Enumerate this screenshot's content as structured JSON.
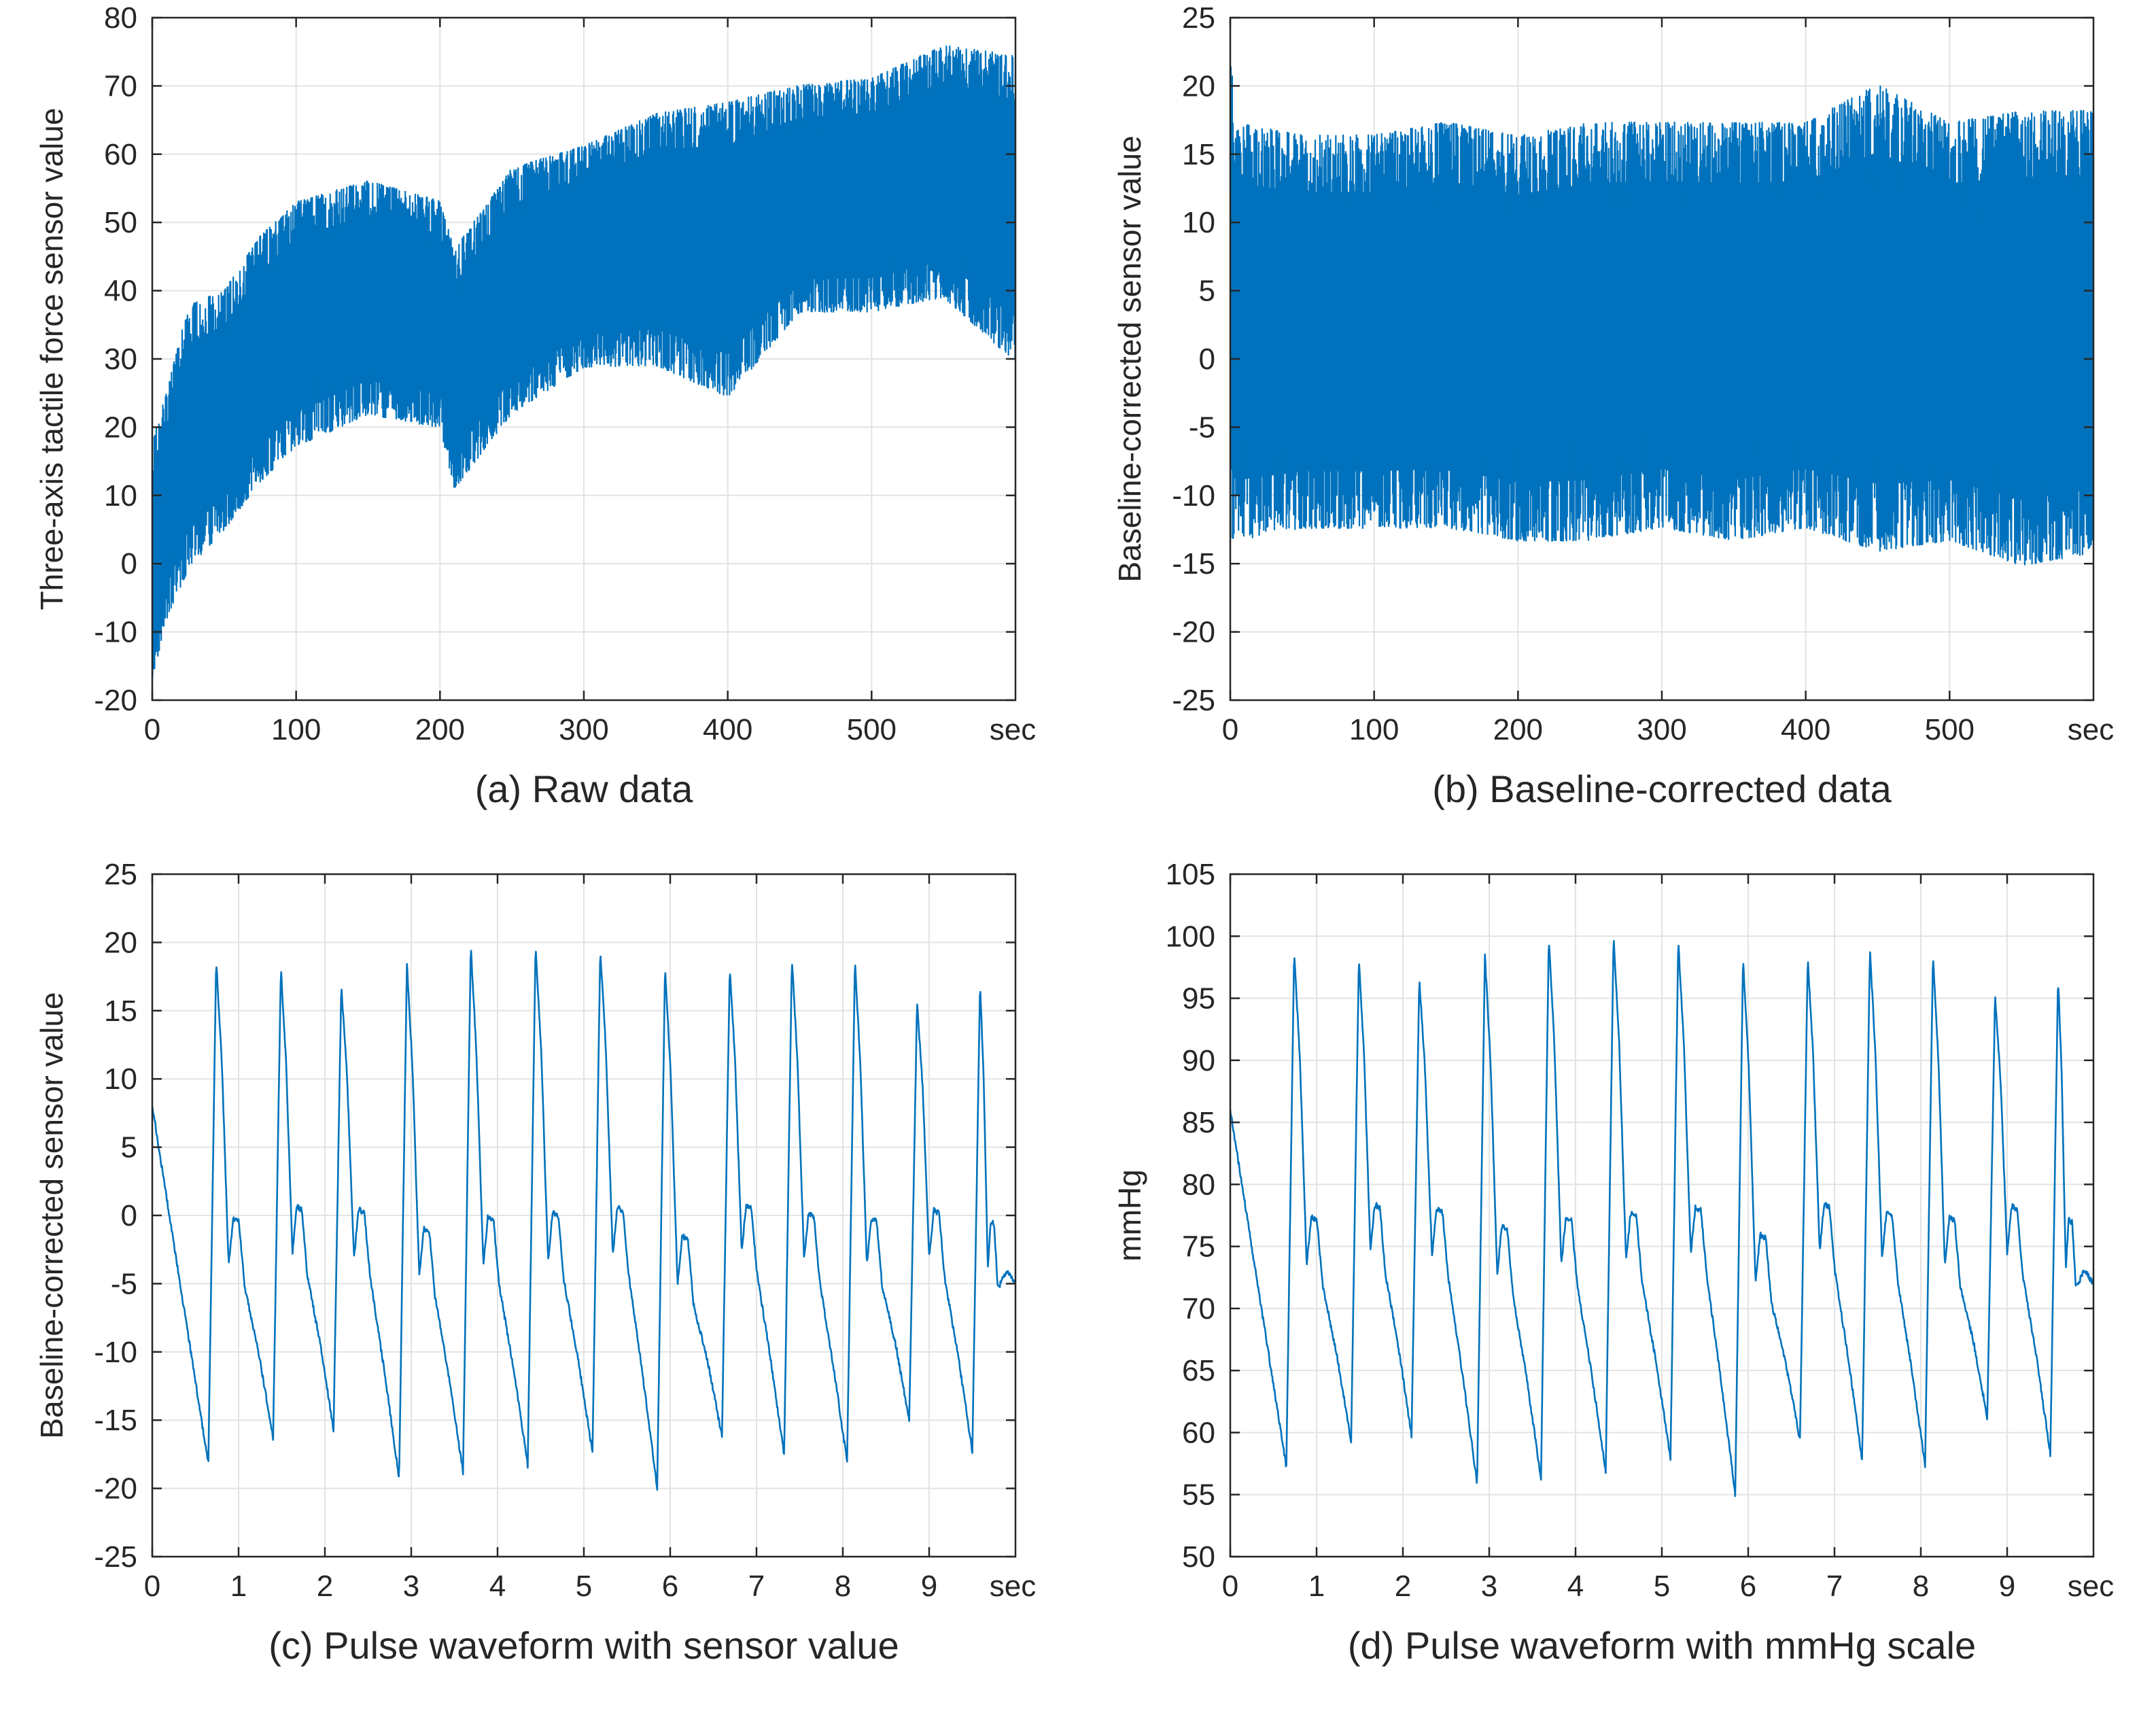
{
  "figure": {
    "accent": "#0072bd"
  },
  "chart_data": [
    {
      "id": "a",
      "type": "line",
      "caption": "(a) Raw data",
      "ylabel": "Three-axis tactile force sensor value",
      "xlabel": "",
      "x_unit_label": "sec",
      "xlim": [
        0,
        600
      ],
      "ylim": [
        -20,
        80
      ],
      "xticks": [
        0,
        100,
        200,
        300,
        400,
        500
      ],
      "xtick_labels": [
        "0",
        "100",
        "200",
        "300",
        "400",
        "500"
      ],
      "yticks": [
        -20,
        -10,
        0,
        10,
        20,
        30,
        40,
        50,
        60,
        70,
        80
      ],
      "ytick_labels": [
        "-20",
        "-10",
        "0",
        "10",
        "20",
        "30",
        "40",
        "50",
        "60",
        "70",
        "80"
      ],
      "grid": true,
      "color": "#0072bd",
      "series": [
        {
          "name": "raw",
          "style": "dense-band",
          "x": [
            0,
            10,
            25,
            50,
            75,
            100,
            150,
            200,
            210,
            250,
            300,
            350,
            400,
            450,
            500,
            550,
            600
          ],
          "y_upper": [
            20,
            27,
            40,
            42,
            50,
            55,
            58,
            55,
            48,
            60,
            63,
            68,
            70,
            72,
            73,
            78,
            77
          ],
          "y_lower": [
            -19,
            -10,
            -3,
            3,
            10,
            15,
            20,
            18,
            9,
            20,
            27,
            27,
            22,
            35,
            35,
            37,
            27
          ]
        }
      ]
    },
    {
      "id": "b",
      "type": "line",
      "caption": "(b) Baseline-corrected data",
      "ylabel": "Baseline-corrected sensor value",
      "xlabel": "",
      "x_unit_label": "sec",
      "xlim": [
        0,
        600
      ],
      "ylim": [
        -25,
        25
      ],
      "xticks": [
        0,
        100,
        200,
        300,
        400,
        500
      ],
      "xtick_labels": [
        "0",
        "100",
        "200",
        "300",
        "400",
        "500"
      ],
      "yticks": [
        -25,
        -20,
        -15,
        -10,
        -5,
        0,
        5,
        10,
        15,
        20,
        25
      ],
      "ytick_labels": [
        "-25",
        "-20",
        "-15",
        "-10",
        "-5",
        "0",
        "5",
        "10",
        "15",
        "20",
        "25"
      ],
      "grid": true,
      "color": "#0072bd",
      "series": [
        {
          "name": "baseline-corrected",
          "style": "dense-band",
          "x": [
            0,
            5,
            50,
            100,
            150,
            200,
            250,
            300,
            350,
            400,
            450,
            500,
            550,
            600
          ],
          "y_upper": [
            24,
            19,
            18,
            18,
            19,
            18,
            19,
            19,
            19,
            19,
            22,
            19,
            20,
            20
          ],
          "y_lower": [
            -15,
            -15,
            -14,
            -14,
            -14,
            -15,
            -15,
            -14,
            -15,
            -14,
            -16,
            -15,
            -17,
            -16
          ]
        }
      ]
    },
    {
      "id": "c",
      "type": "line",
      "caption": "(c) Pulse waveform with sensor value",
      "ylabel": "Baseline-corrected sensor value",
      "xlabel": "",
      "x_unit_label": "sec",
      "xlim": [
        0,
        10
      ],
      "ylim": [
        -25,
        25
      ],
      "xticks": [
        0,
        1,
        2,
        3,
        4,
        5,
        6,
        7,
        8,
        9
      ],
      "xtick_labels": [
        "0",
        "1",
        "2",
        "3",
        "4",
        "5",
        "6",
        "7",
        "8",
        "9"
      ],
      "yticks": [
        -25,
        -20,
        -15,
        -10,
        -5,
        0,
        5,
        10,
        15,
        20,
        25
      ],
      "ytick_labels": [
        "-25",
        "-20",
        "-15",
        "-10",
        "-5",
        "0",
        "5",
        "10",
        "15",
        "20",
        "25"
      ],
      "grid": true,
      "color": "#0072bd",
      "series": [
        {
          "name": "pulse",
          "style": "pulse",
          "start": {
            "t": 0,
            "v": 8
          },
          "beats": [
            {
              "min_t": 0.65,
              "min": -18.2,
              "peak_t": 0.74,
              "peak": 18.7
            },
            {
              "min_t": 1.4,
              "min": -16.3,
              "peak_t": 1.49,
              "peak": 18.1
            },
            {
              "min_t": 2.1,
              "min": -15.7,
              "peak_t": 2.19,
              "peak": 16.8
            },
            {
              "min_t": 2.86,
              "min": -19.3,
              "peak_t": 2.95,
              "peak": 18.5
            },
            {
              "min_t": 3.6,
              "min": -18.8,
              "peak_t": 3.69,
              "peak": 19.7
            },
            {
              "min_t": 4.35,
              "min": -18.3,
              "peak_t": 4.44,
              "peak": 19.8
            },
            {
              "min_t": 5.1,
              "min": -17.4,
              "peak_t": 5.19,
              "peak": 19.5
            },
            {
              "min_t": 5.85,
              "min": -20.0,
              "peak_t": 5.94,
              "peak": 18.1
            },
            {
              "min_t": 6.6,
              "min": -16.2,
              "peak_t": 6.69,
              "peak": 18.2
            },
            {
              "min_t": 7.32,
              "min": -17.6,
              "peak_t": 7.41,
              "peak": 18.8
            },
            {
              "min_t": 8.05,
              "min": -18.1,
              "peak_t": 8.14,
              "peak": 18.6
            },
            {
              "min_t": 8.77,
              "min": -15.0,
              "peak_t": 8.86,
              "peak": 15.7
            },
            {
              "min_t": 9.5,
              "min": -17.3,
              "peak_t": 9.59,
              "peak": 17.0
            }
          ],
          "end": {
            "t": 10,
            "v": -5
          }
        }
      ]
    },
    {
      "id": "d",
      "type": "line",
      "caption": "(d) Pulse waveform with mmHg scale",
      "ylabel": "mmHg",
      "xlabel": "",
      "x_unit_label": "sec",
      "xlim": [
        0,
        10
      ],
      "ylim": [
        50,
        105
      ],
      "xticks": [
        0,
        1,
        2,
        3,
        4,
        5,
        6,
        7,
        8,
        9
      ],
      "xtick_labels": [
        "0",
        "1",
        "2",
        "3",
        "4",
        "5",
        "6",
        "7",
        "8",
        "9"
      ],
      "yticks": [
        50,
        55,
        60,
        65,
        70,
        75,
        80,
        85,
        90,
        95,
        100,
        105
      ],
      "ytick_labels": [
        "50",
        "55",
        "60",
        "65",
        "70",
        "75",
        "80",
        "85",
        "90",
        "95",
        "100",
        "105"
      ],
      "grid": true,
      "color": "#0072bd",
      "series": [
        {
          "name": "pulse-mmHg",
          "style": "pulse",
          "start": {
            "t": 0,
            "v": 86
          },
          "beats": [
            {
              "min_t": 0.65,
              "min": 57.2,
              "peak_t": 0.74,
              "peak": 98.8
            },
            {
              "min_t": 1.4,
              "min": 59.3,
              "peak_t": 1.49,
              "peak": 98.2
            },
            {
              "min_t": 2.1,
              "min": 59.8,
              "peak_t": 2.19,
              "peak": 96.6
            },
            {
              "min_t": 2.86,
              "min": 55.9,
              "peak_t": 2.95,
              "peak": 98.6
            },
            {
              "min_t": 3.6,
              "min": 56.3,
              "peak_t": 3.69,
              "peak": 99.9
            },
            {
              "min_t": 4.35,
              "min": 56.8,
              "peak_t": 4.44,
              "peak": 100.0
            },
            {
              "min_t": 5.1,
              "min": 57.9,
              "peak_t": 5.19,
              "peak": 99.6
            },
            {
              "min_t": 5.85,
              "min": 55.0,
              "peak_t": 5.94,
              "peak": 98.3
            },
            {
              "min_t": 6.6,
              "min": 59.4,
              "peak_t": 6.69,
              "peak": 98.2
            },
            {
              "min_t": 7.32,
              "min": 57.8,
              "peak_t": 7.41,
              "peak": 98.9
            },
            {
              "min_t": 8.05,
              "min": 57.3,
              "peak_t": 8.14,
              "peak": 98.5
            },
            {
              "min_t": 8.77,
              "min": 61.2,
              "peak_t": 8.86,
              "peak": 95.3
            },
            {
              "min_t": 9.5,
              "min": 58.3,
              "peak_t": 9.59,
              "peak": 96.7
            }
          ],
          "end": {
            "t": 10,
            "v": 72
          }
        }
      ]
    }
  ]
}
